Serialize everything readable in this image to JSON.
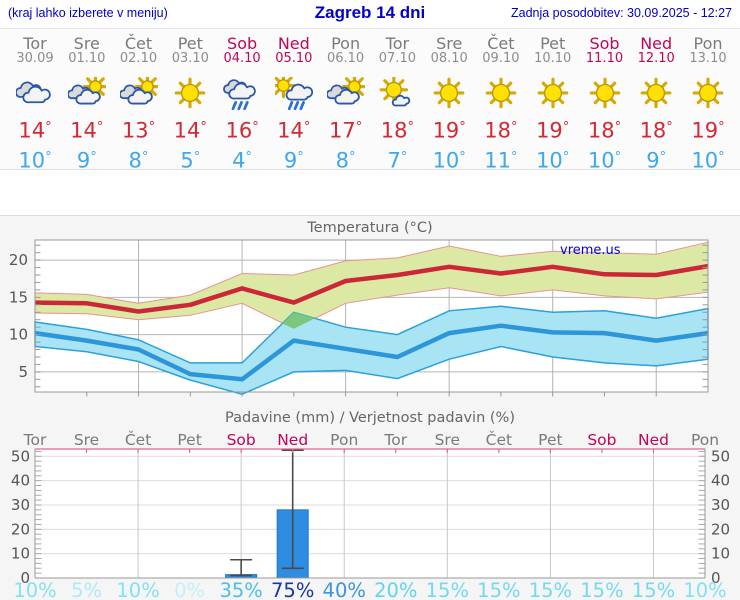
{
  "header": {
    "left": "(kraj lahko izberete v meniju)",
    "title": "Zagreb 14 dni",
    "right": "Zadnja posodobitev: 30.09.2025 - 12:27"
  },
  "units": {
    "degree": "°"
  },
  "colors": {
    "weekend": "#c00558",
    "weekday": "#7a7a7a",
    "date": "#8c8c8c",
    "high_temp": "#d22a33",
    "low_temp": "#3fa7ee",
    "header_blue": "#0000cc",
    "panel_bg": "#f5f5f5",
    "grid": "#b4b4b4",
    "axis": "#999999",
    "axis_text": "#555555",
    "title_text": "#666666",
    "watermark": "#0000dd"
  },
  "days": [
    {
      "name": "Tor",
      "date": "30.09",
      "icon": "cloudy",
      "high": "14",
      "low": "10",
      "weekend": false
    },
    {
      "name": "Sre",
      "date": "01.10",
      "icon": "sun-cloud",
      "high": "14",
      "low": "9",
      "weekend": false
    },
    {
      "name": "Čet",
      "date": "02.10",
      "icon": "sun-cloud",
      "high": "13",
      "low": "8",
      "weekend": false
    },
    {
      "name": "Pet",
      "date": "03.10",
      "icon": "sunny",
      "high": "14",
      "low": "5",
      "weekend": false
    },
    {
      "name": "Sob",
      "date": "04.10",
      "icon": "rain",
      "high": "16",
      "low": "4",
      "weekend": true
    },
    {
      "name": "Ned",
      "date": "05.10",
      "icon": "sun-rain",
      "high": "14",
      "low": "9",
      "weekend": true
    },
    {
      "name": "Pon",
      "date": "06.10",
      "icon": "sun-cloud",
      "high": "17",
      "low": "8",
      "weekend": false
    },
    {
      "name": "Tor",
      "date": "07.10",
      "icon": "sun-small-cloud",
      "high": "18",
      "low": "7",
      "weekend": false
    },
    {
      "name": "Sre",
      "date": "08.10",
      "icon": "sunny",
      "high": "19",
      "low": "10",
      "weekend": false
    },
    {
      "name": "Čet",
      "date": "09.10",
      "icon": "sunny",
      "high": "18",
      "low": "11",
      "weekend": false
    },
    {
      "name": "Pet",
      "date": "10.10",
      "icon": "sunny",
      "high": "19",
      "low": "10",
      "weekend": false
    },
    {
      "name": "Sob",
      "date": "11.10",
      "icon": "sunny",
      "high": "18",
      "low": "10",
      "weekend": true
    },
    {
      "name": "Ned",
      "date": "12.10",
      "icon": "sunny",
      "high": "18",
      "low": "9",
      "weekend": true
    },
    {
      "name": "Pon",
      "date": "13.10",
      "icon": "sunny",
      "high": "19",
      "low": "10",
      "weekend": false
    }
  ],
  "chart_data": [
    {
      "type": "area",
      "title": "Temperatura (°C)",
      "watermark": "vreme.us",
      "ylim": [
        2.3,
        22.7
      ],
      "yticks": [
        5,
        10,
        15,
        20
      ],
      "grid": true,
      "series": [
        {
          "name": "high",
          "color": "#cb2739",
          "width": 4.5,
          "values": [
            14.3,
            14.2,
            13.1,
            14.0,
            16.2,
            14.3,
            17.2,
            18.0,
            19.1,
            18.2,
            19.1,
            18.1,
            18.0,
            19.2
          ]
        },
        {
          "name": "low",
          "color": "#2d95da",
          "width": 4.5,
          "values": [
            10.2,
            9.2,
            8.0,
            4.7,
            4.0,
            9.2,
            8.1,
            7.0,
            10.2,
            11.2,
            10.3,
            10.2,
            9.2,
            10.2
          ]
        }
      ],
      "bands": [
        {
          "name": "high-range",
          "fill": "#dce9a4",
          "stroke": "#e8938f",
          "upper": [
            15.6,
            15.4,
            14.2,
            15.3,
            18.2,
            18.0,
            19.9,
            20.3,
            21.9,
            20.5,
            21.2,
            21.0,
            20.8,
            22.4
          ],
          "lower": [
            12.9,
            12.8,
            12.0,
            12.6,
            14.2,
            10.8,
            14.2,
            15.3,
            16.3,
            15.2,
            16.0,
            15.2,
            14.8,
            15.7
          ]
        },
        {
          "name": "low-range",
          "fill": "#a8e4f4",
          "stroke": "#2ba0dc",
          "upper": [
            11.7,
            10.7,
            9.3,
            6.2,
            6.2,
            13.0,
            11.0,
            10.0,
            13.2,
            13.8,
            13.0,
            13.2,
            12.2,
            13.5
          ],
          "lower": [
            8.4,
            7.7,
            6.4,
            3.9,
            2.0,
            5.0,
            5.2,
            4.1,
            6.7,
            8.4,
            7.0,
            6.2,
            5.8,
            6.7
          ]
        }
      ],
      "overlap_patch": {
        "fill": "#7cc77e",
        "points": [
          [
            4.78,
            11.5
          ],
          [
            5,
            13.0
          ],
          [
            5.41,
            12.2
          ],
          [
            5,
            10.8
          ]
        ]
      }
    },
    {
      "type": "bar",
      "title": "Padavine (mm) / Verjetnost padavin (%)",
      "categories": [
        "Tor",
        "Sre",
        "Čet",
        "Pet",
        "Sob",
        "Ned",
        "Pon",
        "Tor",
        "Sre",
        "Čet",
        "Pet",
        "Sob",
        "Ned",
        "Pon"
      ],
      "weekend": [
        false,
        false,
        false,
        false,
        true,
        true,
        false,
        false,
        false,
        false,
        false,
        true,
        true,
        false
      ],
      "values_mm": [
        0,
        0,
        0,
        0,
        1.4,
        28,
        0,
        0,
        0,
        0,
        0,
        0,
        0,
        0
      ],
      "whiskers": [
        null,
        null,
        null,
        null,
        {
          "low": 1,
          "high": 7.5
        },
        {
          "low": 4,
          "high": 52.5
        },
        null,
        null,
        null,
        null,
        null,
        null,
        null,
        null
      ],
      "probability": [
        "10%",
        "5%",
        "10%",
        "0%",
        "35%",
        "75%",
        "40%",
        "20%",
        "15%",
        "15%",
        "15%",
        "15%",
        "15%",
        "10%"
      ],
      "probability_colors": [
        "#84e1f3",
        "#a9ecf8",
        "#84e1f3",
        "#bff2fa",
        "#4cc0e8",
        "#1c35a6",
        "#3d93de",
        "#5fd4ef",
        "#72daf0",
        "#72daf0",
        "#72daf0",
        "#72daf0",
        "#72daf0",
        "#84e1f3"
      ],
      "ylim": [
        0,
        53
      ],
      "yticks": [
        0,
        10,
        20,
        30,
        40,
        50
      ],
      "bar_fill": "#2e8ce2",
      "bar_stroke": "#1f76c8",
      "whisker_color": "#4a4a4a",
      "top_border_color": "#e0688a",
      "grid": true
    }
  ]
}
